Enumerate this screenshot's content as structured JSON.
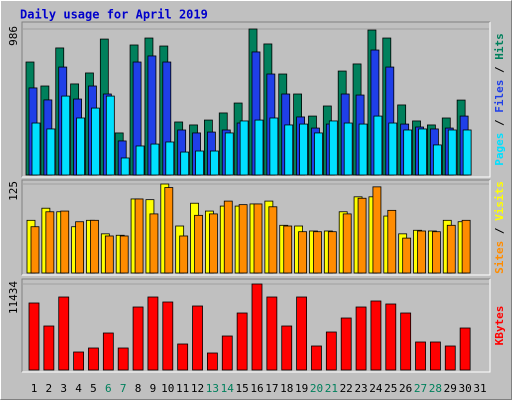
{
  "title": "Daily usage for April 2019",
  "categories": [
    "1",
    "2",
    "3",
    "4",
    "5",
    "6",
    "7",
    "8",
    "9",
    "10",
    "11",
    "12",
    "13",
    "14",
    "15",
    "16",
    "17",
    "18",
    "19",
    "20",
    "21",
    "22",
    "23",
    "24",
    "25",
    "26",
    "27",
    "28",
    "29",
    "30",
    "31"
  ],
  "category_colors": [
    "#000000",
    "#000000",
    "#000000",
    "#000000",
    "#000000",
    "#00805c",
    "#00805c",
    "#000000",
    "#000000",
    "#000000",
    "#000000",
    "#000000",
    "#00805c",
    "#00805c",
    "#000000",
    "#000000",
    "#000000",
    "#000000",
    "#000000",
    "#00805c",
    "#00805c",
    "#000000",
    "#000000",
    "#000000",
    "#000000",
    "#000000",
    "#00805c",
    "#00805c",
    "#000000",
    "#000000",
    "#000000"
  ],
  "legend_separator": " / ",
  "chart_data": [
    {
      "type": "bar",
      "ylim": [
        0,
        986
      ],
      "yticks": [
        986
      ],
      "series": [
        {
          "name": "Hits",
          "color": "#00805c",
          "values": [
            763,
            601,
            858,
            615,
            689,
            918,
            284,
            878,
            925,
            871,
            358,
            338,
            371,
            419,
            486,
            986,
            885,
            682,
            547,
            398,
            466,
            702,
            750,
            979,
            925,
            473,
            365,
            338,
            385,
            506,
            null
          ]
        },
        {
          "name": "Files",
          "color": "#1f3fe8",
          "values": [
            588,
            507,
            729,
            513,
            601,
            547,
            230,
            763,
            804,
            763,
            304,
            284,
            290,
            304,
            351,
            831,
            682,
            547,
            392,
            317,
            344,
            547,
            540,
            844,
            729,
            344,
            324,
            311,
            317,
            398,
            null
          ]
        },
        {
          "name": "Pages",
          "color": "#00e0ff",
          "values": [
            351,
            311,
            533,
            385,
            452,
            533,
            115,
            196,
            209,
            223,
            155,
            162,
            162,
            284,
            365,
            371,
            385,
            338,
            344,
            284,
            365,
            351,
            344,
            398,
            351,
            304,
            311,
            203,
            304,
            304,
            null
          ]
        }
      ]
    },
    {
      "type": "bar",
      "ylim": [
        0,
        125
      ],
      "yticks": [
        125
      ],
      "series": [
        {
          "name": "Visits",
          "color": "#ffff00",
          "values": [
            74,
            91,
            86,
            65,
            74,
            55,
            53,
            104,
            103,
            125,
            66,
            98,
            87,
            94,
            94,
            97,
            101,
            67,
            66,
            59,
            59,
            86,
            107,
            107,
            80,
            55,
            60,
            59,
            74,
            72,
            null
          ]
        },
        {
          "name": "Sites",
          "color": "#ff8c00",
          "values": [
            65,
            86,
            87,
            72,
            74,
            52,
            52,
            104,
            83,
            120,
            52,
            81,
            83,
            101,
            96,
            97,
            93,
            66,
            58,
            58,
            58,
            83,
            105,
            121,
            88,
            49,
            59,
            58,
            67,
            74,
            null
          ]
        }
      ]
    },
    {
      "type": "bar",
      "ylim": [
        0,
        11434
      ],
      "yticks": [
        11434
      ],
      "series": [
        {
          "name": "KBytes",
          "color": "#ff0000",
          "values": [
            8908,
            5850,
            9705,
            2393,
            2925,
            4919,
            2925,
            8376,
            9705,
            9041,
            3457,
            8509,
            2260,
            4520,
            7578,
            11434,
            9705,
            5850,
            9705,
            3191,
            5052,
            6913,
            8376,
            9174,
            8775,
            7578,
            3723,
            3723,
            3191,
            5584,
            null
          ]
        }
      ]
    }
  ]
}
